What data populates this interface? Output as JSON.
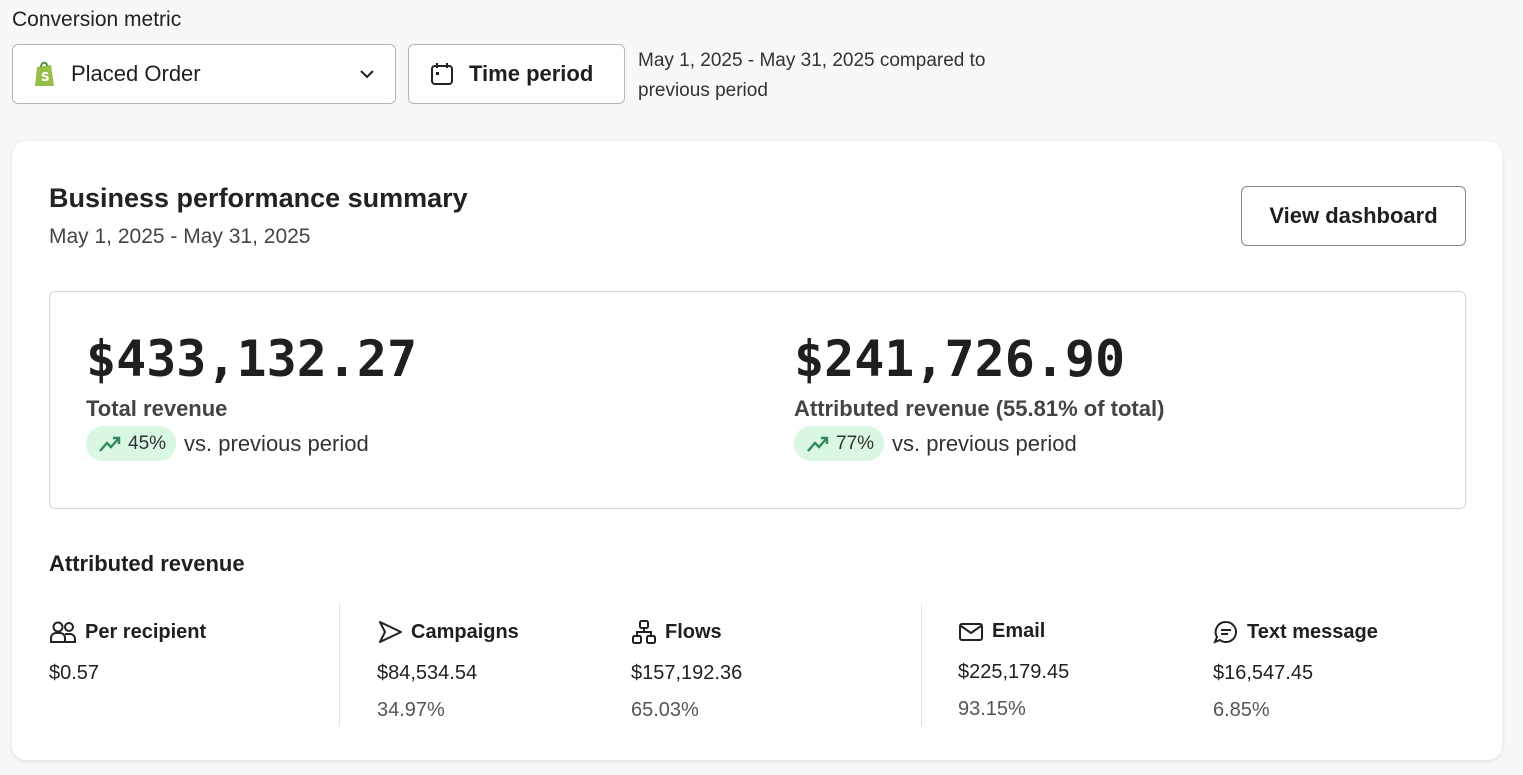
{
  "filters": {
    "conversion_label": "Conversion metric",
    "metric_value": "Placed Order",
    "time_period_label": "Time period",
    "date_range_text": "May 1, 2025 - May 31, 2025 compared to previous period"
  },
  "summary": {
    "title": "Business performance summary",
    "date_range": "May 1, 2025 - May 31, 2025",
    "view_dashboard": "View dashboard",
    "total": {
      "value": "$433,132.27",
      "label": "Total revenue",
      "change": "45%",
      "change_suffix": "vs. previous period"
    },
    "attributed": {
      "value": "$241,726.90",
      "label": "Attributed revenue (55.81% of total)",
      "change": "77%",
      "change_suffix": "vs. previous period"
    }
  },
  "attributed_revenue": {
    "title": "Attributed revenue",
    "items": [
      {
        "icon": "people-icon",
        "label": "Per recipient",
        "value": "$0.57",
        "percent": ""
      },
      {
        "icon": "send-icon",
        "label": "Campaigns",
        "value": "$84,534.54",
        "percent": "34.97%"
      },
      {
        "icon": "flow-icon",
        "label": "Flows",
        "value": "$157,192.36",
        "percent": "65.03%"
      },
      {
        "icon": "email-icon",
        "label": "Email",
        "value": "$225,179.45",
        "percent": "93.15%"
      },
      {
        "icon": "chat-icon",
        "label": "Text message",
        "value": "$16,547.45",
        "percent": "6.85%"
      }
    ]
  },
  "colors": {
    "positive_pill": "#d9f7e3",
    "positive_icon": "#2e8b57",
    "shopify": "#95bf47"
  }
}
